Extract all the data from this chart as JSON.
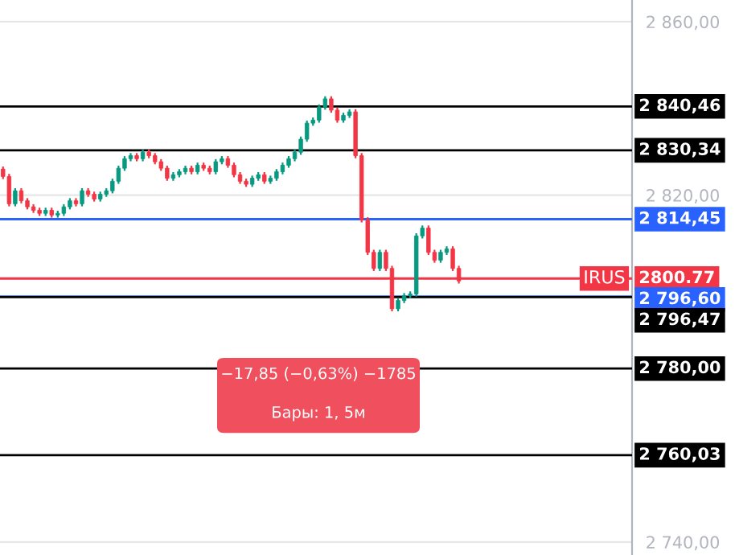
{
  "chart_data": {
    "type": "candlestick",
    "categories": [
      null,
      null,
      null,
      null,
      null,
      null,
      null,
      null,
      null,
      null,
      null,
      null,
      null,
      null,
      null,
      null,
      null,
      null,
      null,
      null,
      null,
      null,
      null,
      null,
      null,
      null,
      null,
      null,
      null,
      null,
      null,
      null,
      null,
      null,
      null,
      null,
      null,
      null,
      null,
      null,
      null,
      null,
      null,
      null,
      null,
      null,
      null,
      null,
      null,
      null,
      null,
      null,
      null,
      null,
      null,
      null,
      null,
      null,
      null,
      null,
      null,
      null,
      null,
      null,
      null,
      null,
      null,
      null,
      null,
      null,
      null,
      null,
      null,
      null,
      null,
      null,
      null,
      null,
      null,
      null,
      null,
      null,
      null,
      null,
      null,
      null,
      null,
      null,
      null,
      null,
      null,
      null,
      null,
      null,
      null,
      null,
      null,
      null,
      null,
      null,
      null,
      null,
      null,
      null
    ],
    "ohlc": [
      [
        2826.0,
        2826.6,
        2823.7,
        2824.3
      ],
      [
        2824.3,
        2824.9,
        2817.4,
        2818.0
      ],
      [
        2818.0,
        2821.6,
        2817.4,
        2821.0
      ],
      [
        2821.0,
        2821.6,
        2818.1,
        2818.7
      ],
      [
        2818.7,
        2819.3,
        2816.7,
        2817.3
      ],
      [
        2817.3,
        2817.9,
        2815.9,
        2816.5
      ],
      [
        2816.5,
        2817.1,
        2815.2,
        2815.8
      ],
      [
        2815.8,
        2817.1,
        2815.2,
        2816.5
      ],
      [
        2816.5,
        2817.1,
        2814.8,
        2815.4
      ],
      [
        2815.4,
        2816.4,
        2814.8,
        2815.8
      ],
      [
        2815.8,
        2817.9,
        2815.2,
        2817.3
      ],
      [
        2817.3,
        2819.3,
        2816.7,
        2818.7
      ],
      [
        2818.7,
        2819.3,
        2817.4,
        2818.0
      ],
      [
        2818.0,
        2821.6,
        2817.4,
        2821.0
      ],
      [
        2821.0,
        2821.6,
        2819.6,
        2820.2
      ],
      [
        2820.2,
        2820.8,
        2818.5,
        2819.1
      ],
      [
        2819.1,
        2820.8,
        2818.5,
        2820.2
      ],
      [
        2820.2,
        2821.6,
        2819.6,
        2821.0
      ],
      [
        2821.0,
        2823.8,
        2820.4,
        2823.2
      ],
      [
        2823.2,
        2826.8,
        2822.6,
        2826.2
      ],
      [
        2826.2,
        2829.0,
        2825.6,
        2828.4
      ],
      [
        2828.4,
        2829.7,
        2827.8,
        2829.1
      ],
      [
        2829.1,
        2829.7,
        2827.8,
        2828.4
      ],
      [
        2828.4,
        2830.5,
        2827.8,
        2829.9
      ],
      [
        2829.9,
        2830.5,
        2828.5,
        2829.1
      ],
      [
        2829.1,
        2829.7,
        2827.1,
        2827.7
      ],
      [
        2827.7,
        2828.3,
        2825.6,
        2826.2
      ],
      [
        2826.2,
        2826.8,
        2823.3,
        2823.9
      ],
      [
        2823.9,
        2825.3,
        2823.3,
        2824.7
      ],
      [
        2824.7,
        2826.0,
        2824.1,
        2825.4
      ],
      [
        2825.4,
        2826.8,
        2824.8,
        2826.2
      ],
      [
        2826.2,
        2826.8,
        2824.8,
        2825.4
      ],
      [
        2825.4,
        2827.5,
        2824.8,
        2826.9
      ],
      [
        2826.9,
        2827.5,
        2825.6,
        2826.2
      ],
      [
        2826.2,
        2826.8,
        2824.8,
        2825.4
      ],
      [
        2825.4,
        2828.3,
        2824.8,
        2827.7
      ],
      [
        2827.7,
        2829.0,
        2827.1,
        2828.4
      ],
      [
        2828.4,
        2829.0,
        2826.3,
        2826.9
      ],
      [
        2826.9,
        2827.5,
        2824.1,
        2824.7
      ],
      [
        2824.7,
        2825.3,
        2822.6,
        2823.2
      ],
      [
        2823.2,
        2823.8,
        2821.9,
        2822.5
      ],
      [
        2822.5,
        2824.5,
        2821.9,
        2823.9
      ],
      [
        2823.9,
        2825.3,
        2823.3,
        2824.7
      ],
      [
        2824.7,
        2825.3,
        2822.6,
        2823.2
      ],
      [
        2823.2,
        2824.5,
        2822.6,
        2823.9
      ],
      [
        2823.9,
        2826.0,
        2823.3,
        2825.4
      ],
      [
        2825.4,
        2827.5,
        2824.8,
        2826.9
      ],
      [
        2826.9,
        2829.0,
        2826.3,
        2828.4
      ],
      [
        2828.4,
        2830.5,
        2827.8,
        2829.9
      ],
      [
        2829.9,
        2833.5,
        2829.3,
        2832.9
      ],
      [
        2832.9,
        2837.2,
        2832.3,
        2836.6
      ],
      [
        2836.6,
        2837.9,
        2836.0,
        2837.3
      ],
      [
        2837.3,
        2840.9,
        2836.7,
        2840.3
      ],
      [
        2840.3,
        2842.8,
        2839.7,
        2842.2
      ],
      [
        2842.2,
        2842.8,
        2839.0,
        2839.6
      ],
      [
        2839.6,
        2840.2,
        2836.7,
        2837.3
      ],
      [
        2837.3,
        2839.0,
        2836.7,
        2838.4
      ],
      [
        2838.4,
        2839.8,
        2837.8,
        2839.2
      ],
      [
        2839.2,
        2839.8,
        2828.5,
        2829.1
      ],
      [
        2829.1,
        2829.7,
        2813.7,
        2814.3
      ],
      [
        2814.3,
        2814.9,
        2806.2,
        2806.8
      ],
      [
        2806.8,
        2807.4,
        2802.5,
        2803.1
      ],
      [
        2803.1,
        2807.4,
        2802.5,
        2806.8
      ],
      [
        2806.8,
        2807.4,
        2802.5,
        2803.1
      ],
      [
        2803.1,
        2803.7,
        2793.2,
        2793.8
      ],
      [
        2793.8,
        2796.3,
        2793.2,
        2795.7
      ],
      [
        2795.7,
        2797.4,
        2795.1,
        2796.8
      ],
      [
        2796.8,
        2797.8,
        2796.2,
        2797.2
      ],
      [
        2797.2,
        2811.2,
        2796.6,
        2810.6
      ],
      [
        2810.6,
        2813.0,
        2810.0,
        2812.4
      ],
      [
        2812.4,
        2813.0,
        2806.2,
        2806.8
      ],
      [
        2806.8,
        2807.4,
        2804.4,
        2805.0
      ],
      [
        2805.0,
        2807.4,
        2804.4,
        2806.8
      ],
      [
        2806.8,
        2808.2,
        2806.2,
        2807.6
      ],
      [
        2807.6,
        2808.2,
        2802.5,
        2803.1
      ],
      [
        2803.1,
        2803.7,
        2799.6,
        2800.2
      ],
      null,
      null,
      null,
      null,
      null,
      null,
      null,
      null,
      null,
      null,
      null,
      null,
      null,
      null,
      null,
      null,
      null,
      null,
      null,
      null,
      null,
      null,
      null,
      null,
      null,
      null,
      null,
      null
    ],
    "colors": [
      "#f23645",
      "#f23645",
      "#089981",
      "#f23645",
      "#f23645",
      "#f23645",
      "#f23645",
      "#089981",
      "#f23645",
      "#089981",
      "#089981",
      "#089981",
      "#f23645",
      "#089981",
      "#f23645",
      "#f23645",
      "#089981",
      "#089981",
      "#089981",
      "#089981",
      "#089981",
      "#089981",
      "#f23645",
      "#089981",
      "#f23645",
      "#f23645",
      "#f23645",
      "#f23645",
      "#089981",
      "#089981",
      "#089981",
      "#f23645",
      "#089981",
      "#f23645",
      "#f23645",
      "#089981",
      "#089981",
      "#f23645",
      "#f23645",
      "#f23645",
      "#f23645",
      "#089981",
      "#089981",
      "#f23645",
      "#089981",
      "#089981",
      "#089981",
      "#089981",
      "#089981",
      "#089981",
      "#089981",
      "#089981",
      "#089981",
      "#089981",
      "#f23645",
      "#f23645",
      "#089981",
      "#089981",
      "#f23645",
      "#f23645",
      "#f23645",
      "#f23645",
      "#089981",
      "#f23645",
      "#f23645",
      "#089981",
      "#089981",
      "#089981",
      "#089981",
      "#089981",
      "#f23645",
      "#f23645",
      "#089981",
      "#089981",
      "#f23645",
      "#f23645",
      null,
      null,
      null,
      null,
      null,
      null,
      null,
      null,
      null,
      null,
      null,
      null,
      null,
      null,
      null,
      null,
      null,
      null,
      null,
      null,
      null,
      null,
      null,
      null,
      null,
      null,
      null,
      null
    ],
    "ylim": [
      2737,
      2865
    ],
    "yticks": [
      {
        "value": 2740,
        "label": "2 740,00"
      },
      {
        "value": 2820,
        "label": "2 820,00"
      },
      {
        "value": 2860,
        "label": "2 860,00"
      }
    ],
    "tick_labels": "y",
    "grid": "y",
    "ref_lines": [
      {
        "axis": "y",
        "value": 2840.46,
        "label": "2 840,46",
        "color": "#000000"
      },
      {
        "axis": "y",
        "value": 2830.34,
        "label": "2 830,34",
        "color": "#000000"
      },
      {
        "axis": "y",
        "value": 2814.45,
        "label": "2 814,45",
        "color": "#2962ff"
      },
      {
        "axis": "y",
        "value": 2800.77,
        "label": "2800.77",
        "color": "#f23645"
      },
      {
        "axis": "y",
        "value": 2796.6,
        "label": "2 796,60",
        "color": "#2962ff"
      },
      {
        "axis": "y",
        "value": 2796.47,
        "label": "2 796,47",
        "color": "#000000"
      },
      {
        "axis": "y",
        "value": 2780.0,
        "label": "2 780,00",
        "color": "#000000"
      },
      {
        "axis": "y",
        "value": 2760.03,
        "label": "2 760,03",
        "color": "#000000"
      }
    ],
    "annotations": [
      "−17,85 (−0,63%) −1785",
      "Бары: 1, 5м",
      {
        "text": "IRUS",
        "y": 2800.77
      }
    ]
  }
}
